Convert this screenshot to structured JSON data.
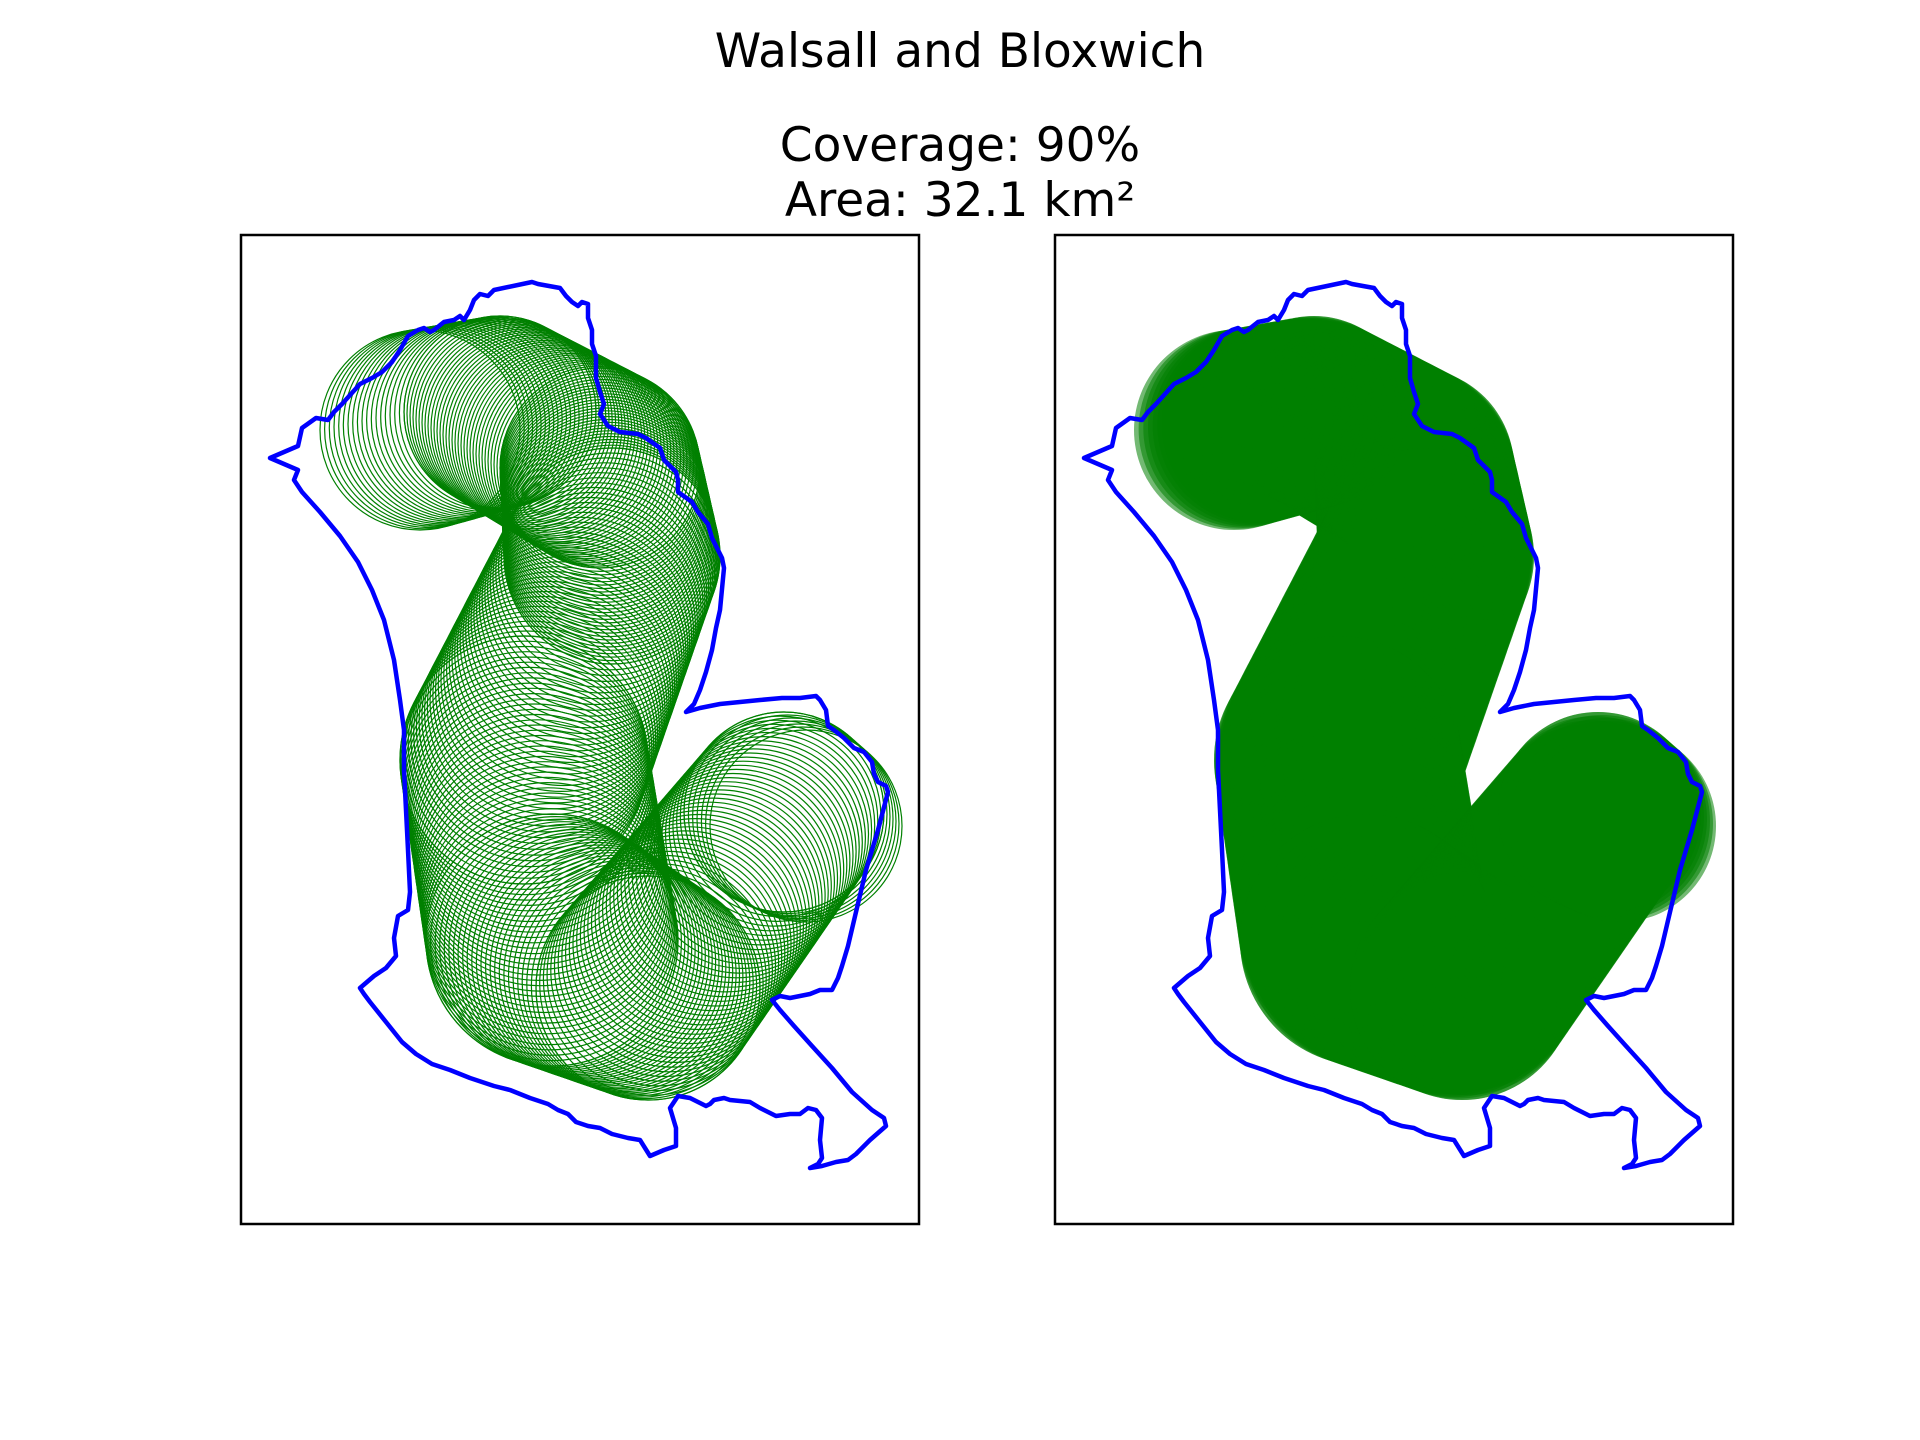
{
  "figure": {
    "title": "Walsall and Bloxwich",
    "coverage_text": "Coverage: 90%",
    "area_text": "Area: 32.1 km²"
  },
  "panels": [
    {
      "name": "circle-outlines",
      "style": "outline"
    },
    {
      "name": "circle-fill",
      "style": "filled"
    }
  ],
  "colors": {
    "boundary": "#0000ff",
    "coverage": "#008000",
    "frame": "#000000",
    "background": "#ffffff"
  }
}
